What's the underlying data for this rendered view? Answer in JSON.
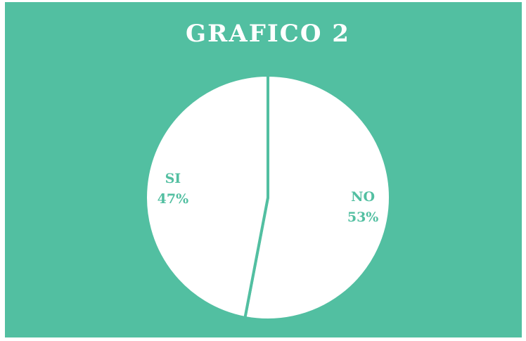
{
  "chart_data": {
    "type": "pie",
    "title": "GRAFICO 2",
    "categories": [
      "NO",
      "SI"
    ],
    "values": [
      53,
      47
    ],
    "value_labels": [
      "53%",
      "47%"
    ],
    "colors": [
      "#ffffff",
      "#ffffff"
    ]
  }
}
